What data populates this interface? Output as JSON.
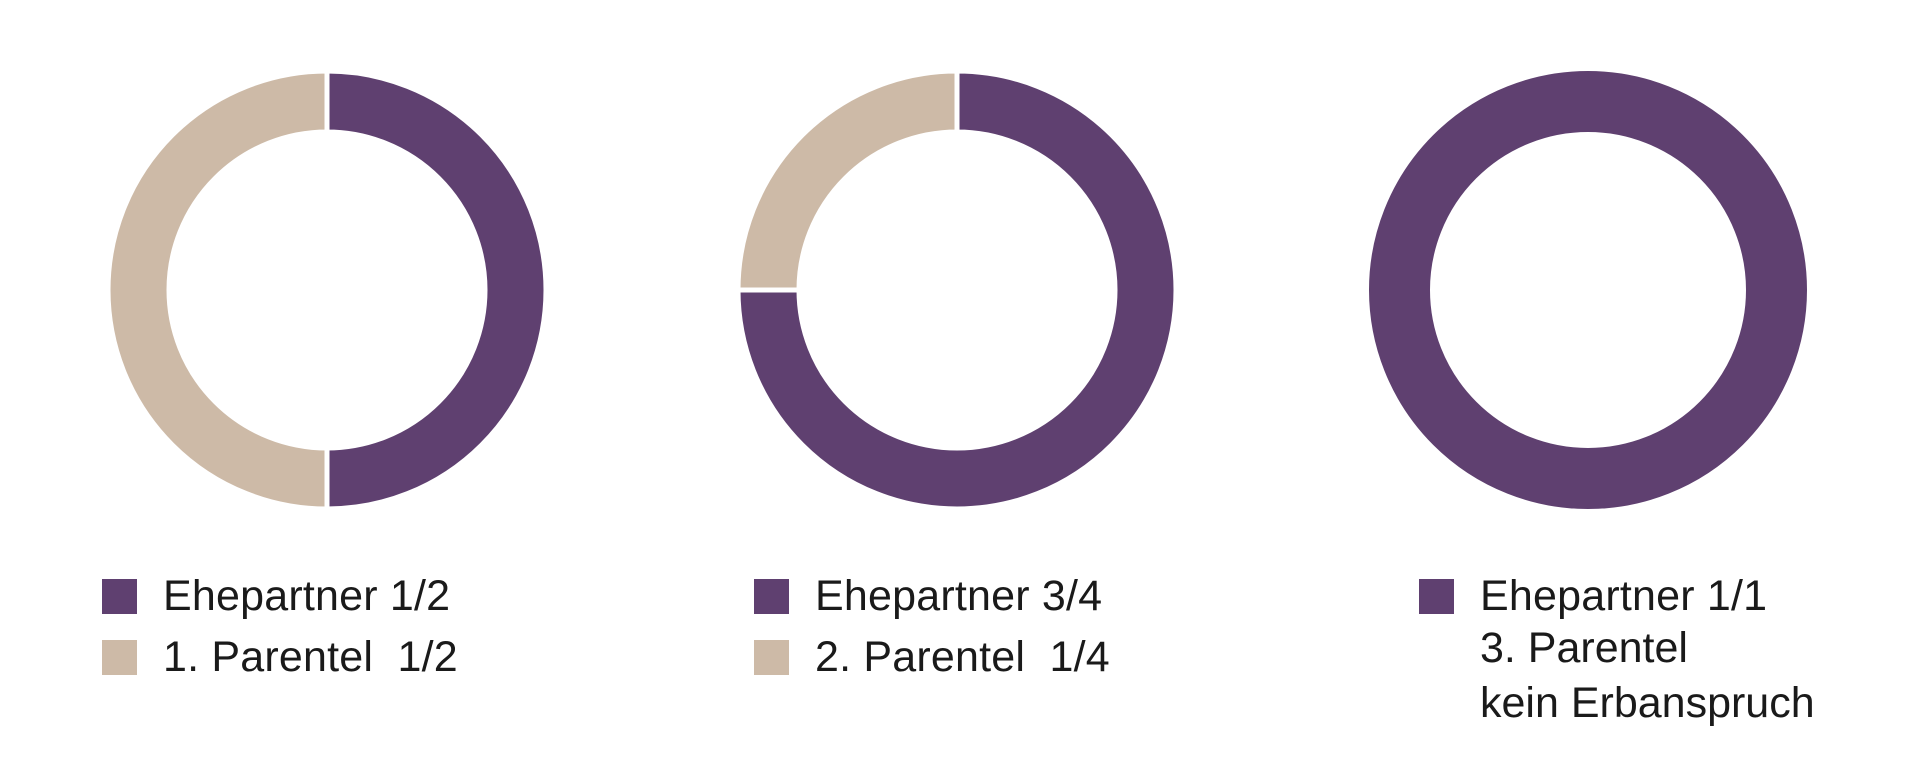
{
  "chart_data": [
    {
      "type": "pie",
      "style": "donut",
      "slices": [
        {
          "label": "Ehepartner",
          "fraction_text": "1/2",
          "value": 0.5,
          "color": "#5f4070"
        },
        {
          "label": "1. Parentel",
          "fraction_text": "1/2",
          "value": 0.5,
          "color": "#cdbaa7"
        }
      ],
      "legend": [
        {
          "text": "Ehepartner 1/2",
          "color": "#5f4070"
        },
        {
          "text": "1. Parentel  1/2",
          "color": "#cdbaa7"
        }
      ],
      "notes": []
    },
    {
      "type": "pie",
      "style": "donut",
      "slices": [
        {
          "label": "Ehepartner",
          "fraction_text": "3/4",
          "value": 0.75,
          "color": "#5f4070"
        },
        {
          "label": "2. Parentel",
          "fraction_text": "1/4",
          "value": 0.25,
          "color": "#cdbaa7"
        }
      ],
      "legend": [
        {
          "text": "Ehepartner 3/4",
          "color": "#5f4070"
        },
        {
          "text": "2. Parentel  1/4",
          "color": "#cdbaa7"
        }
      ],
      "notes": []
    },
    {
      "type": "pie",
      "style": "donut",
      "slices": [
        {
          "label": "Ehepartner",
          "fraction_text": "1/1",
          "value": 1.0,
          "color": "#5f4070"
        }
      ],
      "legend": [
        {
          "text": "Ehepartner 1/1",
          "color": "#5f4070"
        }
      ],
      "notes": [
        "3. Parentel",
        "kein Erbanspruch"
      ]
    }
  ]
}
